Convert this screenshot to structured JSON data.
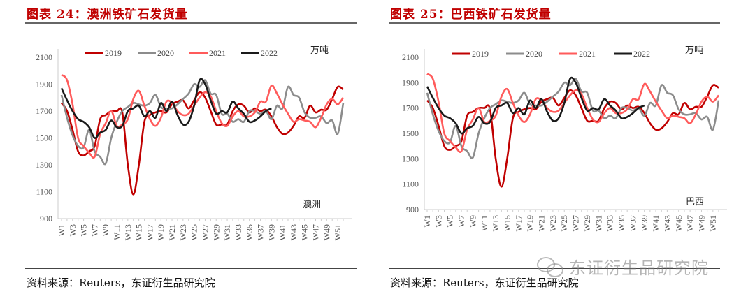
{
  "panels": [
    {
      "title": "图表 24：澳洲铁矿石发货量",
      "source": "资料来源：Reuters，东证衍生品研究院"
    },
    {
      "title": "图表 25：巴西铁矿石发货量",
      "source": "资料来源：Reuters，东证衍生品研究院"
    }
  ],
  "watermark": "东证衍生品研究院",
  "chart_data": [
    {
      "type": "line",
      "title": "澳洲铁矿石发货量",
      "region_label": "澳洲",
      "ylabel": "万吨",
      "ylim": [
        900,
        2100
      ],
      "yticks": [
        900,
        1100,
        1300,
        1500,
        1700,
        1900,
        2100
      ],
      "xticks": [
        "W1",
        "W3",
        "W5",
        "W7",
        "W9",
        "W11",
        "W13",
        "W15",
        "W17",
        "W19",
        "W21",
        "W23",
        "W25",
        "W27",
        "W29",
        "W31",
        "W33",
        "W35",
        "W37",
        "W39",
        "W41",
        "W43",
        "W45",
        "W47",
        "W49",
        "W51"
      ],
      "legend_position": "top",
      "series": [
        {
          "name": "2019",
          "color": "#C00000",
          "values": [
            1760,
            1700,
            1560,
            1400,
            1370,
            1400,
            1440,
            1640,
            1670,
            1700,
            1700,
            1690,
            1300,
            1080,
            1300,
            1620,
            1670,
            1690,
            1700,
            1690,
            1750,
            1770,
            1780,
            1720,
            1780,
            1840,
            1800,
            1700,
            1600,
            1600,
            1600,
            1700,
            1750,
            1740,
            1690,
            1720,
            1700,
            1710,
            1660,
            1580,
            1530,
            1540,
            1590,
            1660,
            1650,
            1740,
            1690,
            1710,
            1710,
            1790,
            1880,
            1860
          ]
        },
        {
          "name": "2020",
          "color": "#8C8C8C",
          "values": [
            1820,
            1650,
            1520,
            1440,
            1430,
            1560,
            1400,
            1360,
            1310,
            1500,
            1620,
            1700,
            1730,
            1760,
            1750,
            1740,
            1760,
            1820,
            1730,
            1720,
            1720,
            1750,
            1790,
            1830,
            1900,
            1880,
            1930,
            1830,
            1820,
            1680,
            1680,
            1620,
            1640,
            1620,
            1700,
            1700,
            1680,
            1700,
            1640,
            1740,
            1720,
            1880,
            1820,
            1800,
            1690,
            1650,
            1650,
            1660,
            1610,
            1630,
            1530,
            1760
          ]
        },
        {
          "name": "2021",
          "color": "#FF5B5B",
          "values": [
            1970,
            1930,
            1750,
            1500,
            1440,
            1390,
            1360,
            1530,
            1610,
            1700,
            1590,
            1600,
            1640,
            1790,
            1850,
            1740,
            1640,
            1590,
            1650,
            1770,
            1760,
            1700,
            1670,
            1680,
            1740,
            1800,
            1840,
            1810,
            1700,
            1610,
            1590,
            1660,
            1700,
            1660,
            1660,
            1690,
            1770,
            1770,
            1890,
            1830,
            1750,
            1680,
            1620,
            1640,
            1630,
            1620,
            1580,
            1650,
            1750,
            1790,
            1750,
            1800
          ]
        },
        {
          "name": "2022",
          "color": "#1A1A1A",
          "values": [
            1870,
            1780,
            1700,
            1640,
            1620,
            1580,
            1500,
            1540,
            1560,
            1630,
            1580,
            1590,
            1700,
            1720,
            1740,
            1660,
            1700,
            1650,
            1760,
            1700,
            1770,
            1670,
            1600,
            1620,
            1740,
            1930,
            1900,
            1780,
            1680,
            1700,
            1690,
            1770,
            1720,
            1680,
            1620,
            1630,
            1660,
            1700,
            1720
          ]
        }
      ]
    },
    {
      "type": "line",
      "title": "巴西铁矿石发货量",
      "region_label": "巴西",
      "ylabel": "万吨",
      "ylim": [
        900,
        2100
      ],
      "yticks": [
        900,
        1100,
        1300,
        1500,
        1700,
        1900,
        2100
      ],
      "xticks": [
        "W1",
        "W3",
        "W5",
        "W7",
        "W9",
        "W11",
        "W13",
        "W15",
        "W17",
        "W19",
        "W21",
        "W23",
        "W25",
        "W27",
        "W29",
        "W31",
        "W33",
        "W35",
        "W37",
        "W39",
        "W41",
        "W43",
        "W45",
        "W47",
        "W49",
        "W51"
      ],
      "legend_position": "top",
      "series": [
        {
          "name": "2019",
          "color": "#C00000",
          "values": [
            1760,
            1700,
            1560,
            1400,
            1370,
            1400,
            1440,
            1640,
            1670,
            1700,
            1700,
            1690,
            1300,
            1080,
            1300,
            1620,
            1670,
            1690,
            1700,
            1690,
            1750,
            1770,
            1780,
            1720,
            1780,
            1840,
            1800,
            1700,
            1600,
            1600,
            1600,
            1700,
            1750,
            1740,
            1690,
            1720,
            1700,
            1710,
            1660,
            1580,
            1530,
            1540,
            1590,
            1660,
            1650,
            1740,
            1690,
            1710,
            1710,
            1790,
            1880,
            1860
          ]
        },
        {
          "name": "2020",
          "color": "#8C8C8C",
          "values": [
            1820,
            1650,
            1520,
            1440,
            1430,
            1560,
            1400,
            1360,
            1310,
            1500,
            1620,
            1700,
            1730,
            1760,
            1750,
            1740,
            1760,
            1820,
            1730,
            1720,
            1720,
            1750,
            1790,
            1830,
            1900,
            1880,
            1930,
            1830,
            1820,
            1680,
            1680,
            1620,
            1640,
            1620,
            1700,
            1700,
            1680,
            1700,
            1640,
            1740,
            1720,
            1880,
            1820,
            1800,
            1690,
            1650,
            1650,
            1660,
            1610,
            1630,
            1530,
            1760
          ]
        },
        {
          "name": "2021",
          "color": "#FF5B5B",
          "values": [
            1970,
            1930,
            1750,
            1500,
            1440,
            1390,
            1360,
            1530,
            1610,
            1700,
            1590,
            1600,
            1640,
            1790,
            1850,
            1740,
            1640,
            1590,
            1650,
            1770,
            1760,
            1700,
            1670,
            1680,
            1740,
            1800,
            1840,
            1810,
            1700,
            1610,
            1590,
            1660,
            1700,
            1660,
            1660,
            1690,
            1770,
            1770,
            1890,
            1830,
            1750,
            1680,
            1620,
            1640,
            1630,
            1620,
            1580,
            1650,
            1750,
            1790,
            1750,
            1800
          ]
        },
        {
          "name": "2022",
          "color": "#1A1A1A",
          "values": [
            1870,
            1780,
            1700,
            1640,
            1620,
            1580,
            1500,
            1540,
            1560,
            1630,
            1580,
            1590,
            1700,
            1720,
            1740,
            1660,
            1700,
            1650,
            1760,
            1700,
            1770,
            1670,
            1600,
            1620,
            1740,
            1930,
            1900,
            1780,
            1680,
            1700,
            1690,
            1770,
            1720,
            1680,
            1620,
            1630,
            1660,
            1700,
            1720
          ]
        }
      ]
    }
  ]
}
